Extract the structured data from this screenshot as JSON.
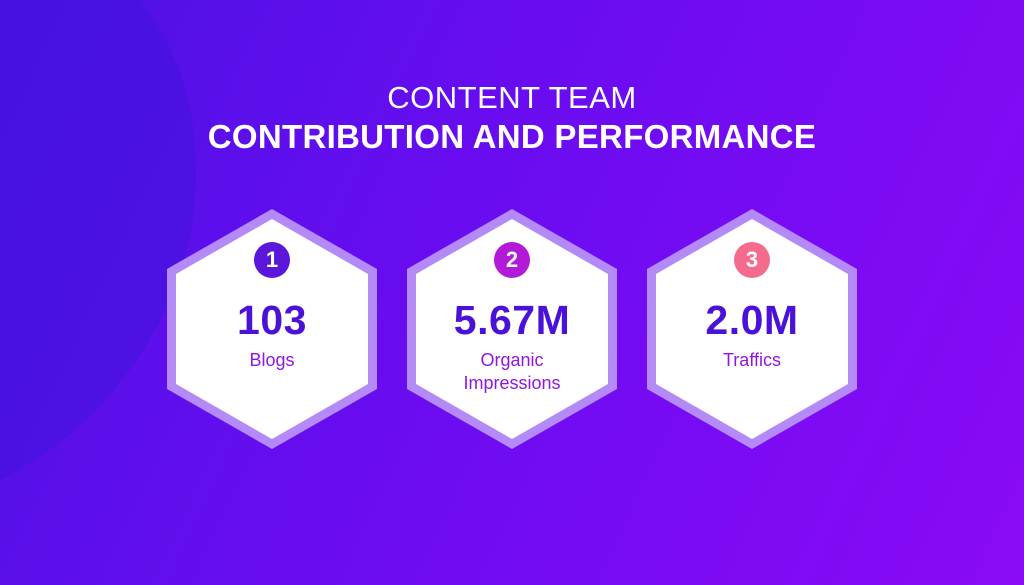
{
  "header": {
    "line1": "CONTENT TEAM",
    "line2": "CONTRIBUTION AND PERFORMANCE"
  },
  "colors": {
    "background_start": "#4b12e6",
    "background_end": "#8a0af7",
    "hex_border": "#b48af7",
    "hex_fill": "#ffffff",
    "value_text": "#4a12d8",
    "label_text": "#9117e0"
  },
  "cards": [
    {
      "number": "1",
      "value": "103",
      "label": "Blogs",
      "badge_color": "#5a16d9"
    },
    {
      "number": "2",
      "value": "5.67M",
      "label": "Organic Impressions",
      "badge_color": "#b21ad8"
    },
    {
      "number": "3",
      "value": "2.0M",
      "label": "Traffics",
      "badge_color": "#f56b8d"
    }
  ]
}
